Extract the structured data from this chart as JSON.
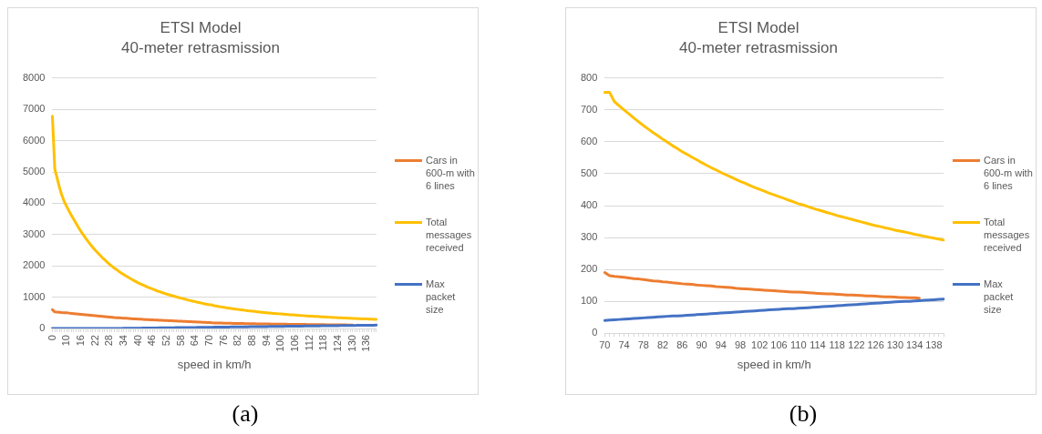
{
  "chart_data": [
    {
      "type": "line",
      "title": "ETSI Model",
      "subtitle": "40-meter retrasmission",
      "xlabel": "speed in km/h",
      "grid": "y",
      "legend": "right",
      "marker": "none",
      "annotations": [
        "(a)"
      ],
      "ylim": [
        0,
        8000
      ],
      "yticks": [
        0,
        1000,
        2000,
        3000,
        4000,
        5000,
        6000,
        7000,
        8000
      ],
      "categories": [
        "0",
        null,
        null,
        null,
        null,
        null,
        "10",
        null,
        null,
        null,
        null,
        null,
        "16",
        null,
        null,
        null,
        null,
        null,
        "22",
        null,
        null,
        null,
        null,
        null,
        "28",
        null,
        null,
        null,
        null,
        null,
        "34",
        null,
        null,
        null,
        null,
        null,
        "40",
        null,
        null,
        null,
        null,
        null,
        "46",
        null,
        null,
        null,
        null,
        null,
        "52",
        null,
        null,
        null,
        null,
        null,
        "58",
        null,
        null,
        null,
        null,
        null,
        "64",
        null,
        null,
        null,
        null,
        null,
        "70",
        null,
        null,
        null,
        null,
        null,
        "76",
        null,
        null,
        null,
        null,
        null,
        "82",
        null,
        null,
        null,
        null,
        null,
        "88",
        null,
        null,
        null,
        null,
        null,
        "94",
        null,
        null,
        null,
        null,
        null,
        "100",
        null,
        null,
        null,
        null,
        null,
        "106",
        null,
        null,
        null,
        null,
        null,
        "112",
        null,
        null,
        null,
        null,
        null,
        "118",
        null,
        null,
        null,
        null,
        null,
        "124",
        null,
        null,
        null,
        null,
        null,
        "130",
        null,
        null,
        null,
        null,
        null,
        "136",
        null,
        null,
        null,
        null
      ],
      "series": [
        {
          "name": "Cars in 600-m with 6 lines",
          "color": "#ed7d31",
          "values": [
            600,
            530,
            525,
            520,
            512,
            506,
            500,
            492,
            484,
            476,
            468,
            460,
            452,
            444,
            436,
            428,
            420,
            413,
            406,
            399,
            392,
            385,
            378,
            371,
            364,
            357,
            350,
            345,
            340,
            335,
            330,
            325,
            320,
            315,
            310,
            305,
            300,
            296,
            292,
            288,
            284,
            280,
            276,
            272,
            268,
            264,
            260,
            256,
            253,
            249,
            246,
            242,
            239,
            235,
            232,
            228,
            225,
            221,
            218,
            214,
            211,
            207,
            204,
            200,
            197,
            193,
            190,
            180,
            178,
            177,
            175,
            173,
            171,
            170,
            168,
            166,
            164,
            163,
            161,
            160,
            158,
            157,
            155,
            154,
            153,
            151,
            150,
            149,
            148,
            146,
            145,
            144,
            143,
            141,
            140,
            139,
            138,
            137,
            136,
            135,
            134,
            133,
            132,
            131,
            130,
            129,
            129,
            128,
            127,
            126,
            125,
            124,
            123,
            123,
            122,
            121,
            120,
            120,
            119,
            118,
            117,
            117,
            116,
            115,
            114,
            114,
            113,
            null,
            null,
            null,
            null,
            null,
            null,
            null,
            null,
            null,
            null
          ]
        },
        {
          "name": "Total messages received",
          "color": "#ffc000",
          "values": [
            6780,
            5100,
            4800,
            4500,
            4250,
            4050,
            3900,
            3750,
            3610,
            3480,
            3350,
            3220,
            3100,
            2990,
            2880,
            2780,
            2680,
            2590,
            2500,
            2420,
            2340,
            2260,
            2190,
            2120,
            2050,
            1990,
            1930,
            1880,
            1820,
            1770,
            1720,
            1675,
            1630,
            1585,
            1540,
            1500,
            1460,
            1425,
            1390,
            1355,
            1320,
            1290,
            1260,
            1230,
            1200,
            1175,
            1150,
            1125,
            1100,
            1078,
            1056,
            1034,
            1012,
            990,
            970,
            950,
            930,
            910,
            892,
            873,
            855,
            838,
            821,
            804,
            788,
            771,
            755,
            755,
            726,
            713,
            700,
            688,
            675,
            663,
            651,
            640,
            629,
            619,
            608,
            598,
            588,
            579,
            569,
            561,
            552,
            544,
            535,
            527,
            519,
            512,
            504,
            497,
            490,
            483,
            476,
            470,
            463,
            457,
            451,
            445,
            439,
            434,
            428,
            423,
            417,
            412,
            406,
            402,
            397,
            392,
            387,
            383,
            378,
            374,
            369,
            365,
            361,
            357,
            353,
            349,
            345,
            341,
            337,
            334,
            330,
            327,
            323,
            320,
            317,
            314,
            310,
            307,
            304,
            301,
            298,
            295,
            292
          ]
        },
        {
          "name": "Max packet size",
          "color": "#4472c4",
          "values": [
            0,
            0,
            0,
            0,
            0,
            0,
            0,
            0,
            0,
            0,
            0,
            0,
            0,
            0,
            0,
            0,
            0,
            0,
            0,
            0,
            0,
            0,
            0,
            0,
            0,
            1,
            2,
            3,
            4,
            5,
            6,
            7,
            8,
            9,
            10,
            11,
            11,
            12,
            13,
            14,
            15,
            16,
            17,
            18,
            19,
            20,
            21,
            22,
            23,
            24,
            25,
            26,
            27,
            28,
            29,
            30,
            31,
            32,
            32,
            33,
            34,
            35,
            36,
            37,
            38,
            39,
            40,
            41,
            42,
            43,
            44,
            45,
            46,
            47,
            48,
            49,
            50,
            51,
            52,
            53,
            54,
            54,
            55,
            56,
            57,
            58,
            59,
            60,
            61,
            62,
            63,
            64,
            65,
            66,
            67,
            68,
            69,
            70,
            71,
            72,
            73,
            74,
            75,
            76,
            77,
            77,
            78,
            79,
            80,
            81,
            82,
            83,
            84,
            85,
            86,
            87,
            88,
            89,
            90,
            91,
            92,
            93,
            94,
            95,
            96,
            97,
            98,
            99,
            100,
            100,
            101,
            102,
            103,
            104,
            105,
            106,
            107
          ]
        }
      ]
    },
    {
      "type": "line",
      "title": "ETSI Model",
      "subtitle": "40-meter retrasmission",
      "xlabel": "speed in km/h",
      "grid": "y",
      "legend": "right",
      "marker": "none",
      "annotations": [
        "(b)"
      ],
      "ylim": [
        0,
        800
      ],
      "yticks": [
        0,
        100,
        200,
        300,
        400,
        500,
        600,
        700,
        800
      ],
      "categories": [
        "70",
        null,
        null,
        null,
        "74",
        null,
        null,
        null,
        "78",
        null,
        null,
        null,
        "82",
        null,
        null,
        null,
        "86",
        null,
        null,
        null,
        "90",
        null,
        null,
        null,
        "94",
        null,
        null,
        null,
        "98",
        null,
        null,
        null,
        "102",
        null,
        null,
        null,
        "106",
        null,
        null,
        null,
        "110",
        null,
        null,
        null,
        "114",
        null,
        null,
        null,
        "118",
        null,
        null,
        null,
        "122",
        null,
        null,
        null,
        "126",
        null,
        null,
        null,
        "130",
        null,
        null,
        null,
        "134",
        null,
        null,
        null,
        "138",
        null,
        null
      ],
      "series": [
        {
          "name": "Cars in 600-m with 6 lines",
          "color": "#ed7d31",
          "values": [
            190,
            180,
            178,
            177,
            175,
            173,
            171,
            170,
            168,
            166,
            164,
            163,
            161,
            160,
            158,
            157,
            155,
            154,
            153,
            151,
            150,
            149,
            148,
            146,
            145,
            144,
            143,
            141,
            140,
            139,
            138,
            137,
            136,
            135,
            134,
            133,
            132,
            131,
            130,
            129,
            129,
            128,
            127,
            126,
            125,
            124,
            123,
            123,
            122,
            121,
            120,
            120,
            119,
            118,
            117,
            117,
            116,
            115,
            114,
            114,
            113,
            112,
            112,
            111,
            111,
            110,
            null,
            null,
            null,
            null,
            null
          ]
        },
        {
          "name": "Total messages received",
          "color": "#ffc000",
          "values": [
            755,
            755,
            726,
            713,
            700,
            688,
            675,
            663,
            651,
            640,
            629,
            619,
            608,
            598,
            588,
            579,
            569,
            561,
            552,
            544,
            535,
            527,
            519,
            512,
            504,
            497,
            490,
            483,
            476,
            470,
            463,
            457,
            451,
            445,
            439,
            434,
            428,
            423,
            417,
            412,
            406,
            402,
            397,
            392,
            387,
            383,
            378,
            374,
            369,
            365,
            361,
            357,
            353,
            349,
            345,
            341,
            337,
            334,
            330,
            327,
            323,
            320,
            317,
            314,
            310,
            307,
            304,
            301,
            298,
            295,
            292
          ]
        },
        {
          "name": "Max packet size",
          "color": "#4472c4",
          "values": [
            40,
            41,
            42,
            43,
            44,
            45,
            46,
            47,
            48,
            49,
            50,
            51,
            52,
            53,
            54,
            54,
            55,
            56,
            57,
            58,
            59,
            60,
            61,
            62,
            63,
            64,
            65,
            66,
            67,
            68,
            69,
            70,
            71,
            72,
            73,
            74,
            75,
            76,
            77,
            77,
            78,
            79,
            80,
            81,
            82,
            83,
            84,
            85,
            86,
            87,
            88,
            89,
            90,
            91,
            92,
            93,
            94,
            95,
            96,
            97,
            98,
            99,
            100,
            100,
            101,
            102,
            103,
            104,
            105,
            106,
            107
          ]
        }
      ]
    }
  ]
}
